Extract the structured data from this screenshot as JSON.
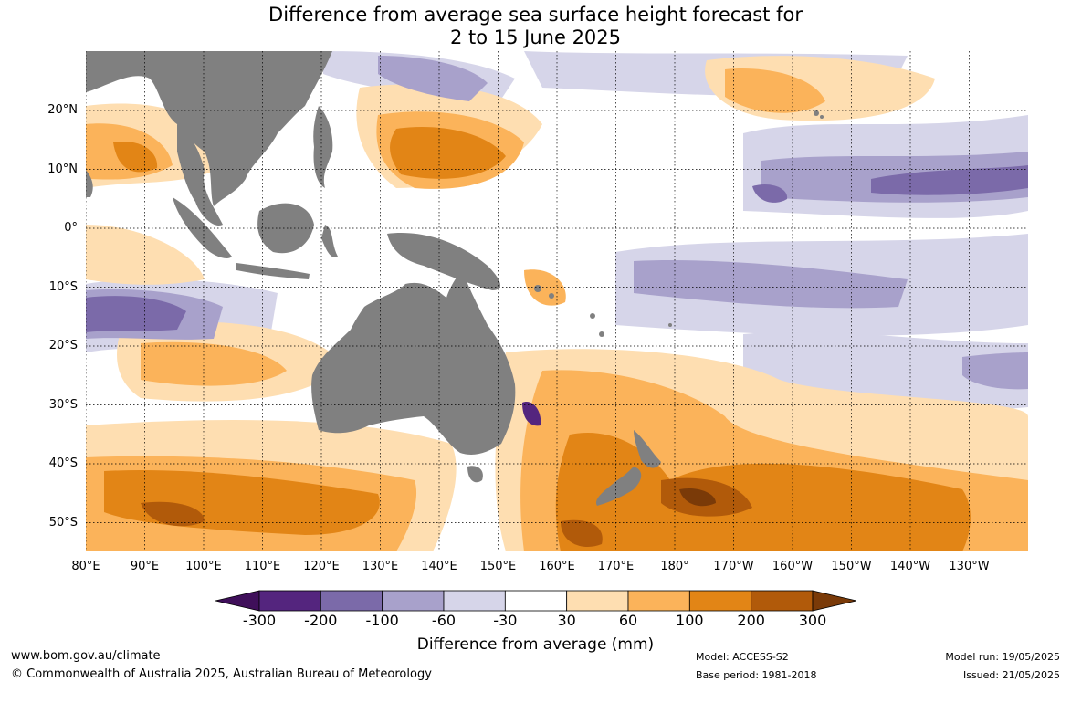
{
  "title_line1": "Difference from average sea surface height forecast for",
  "title_line2": "2 to 15 June 2025",
  "lat_labels": [
    "20°N",
    "10°N",
    "0°",
    "10°S",
    "20°S",
    "30°S",
    "40°S",
    "50°S"
  ],
  "lon_labels": [
    "80°E",
    "90°E",
    "100°E",
    "110°E",
    "120°E",
    "130°E",
    "140°E",
    "150°E",
    "160°E",
    "170°E",
    "180°",
    "170°W",
    "160°W",
    "150°W",
    "140°W",
    "130°W"
  ],
  "colorbar": {
    "labels": [
      "-300",
      "-200",
      "-100",
      "-60",
      "-30",
      "30",
      "60",
      "100",
      "200",
      "300"
    ],
    "colors": [
      "#3f0f5a",
      "#54257e",
      "#7b6aa9",
      "#a8a1cb",
      "#d6d5e9",
      "#ffffff",
      "#fedeb1",
      "#fbb35a",
      "#e28516",
      "#b15a0a",
      "#7a3a08"
    ],
    "title": "Difference from average (mm)"
  },
  "footer": {
    "url": "www.bom.gov.au/climate",
    "copyright": "© Commonwealth of Australia 2025, Australian Bureau of Meteorology",
    "model": "Model: ACCESS-S2",
    "base_period": "Base period: 1981-2018",
    "model_run": "Model run: 19/05/2025",
    "issued": "Issued: 21/05/2025"
  }
}
